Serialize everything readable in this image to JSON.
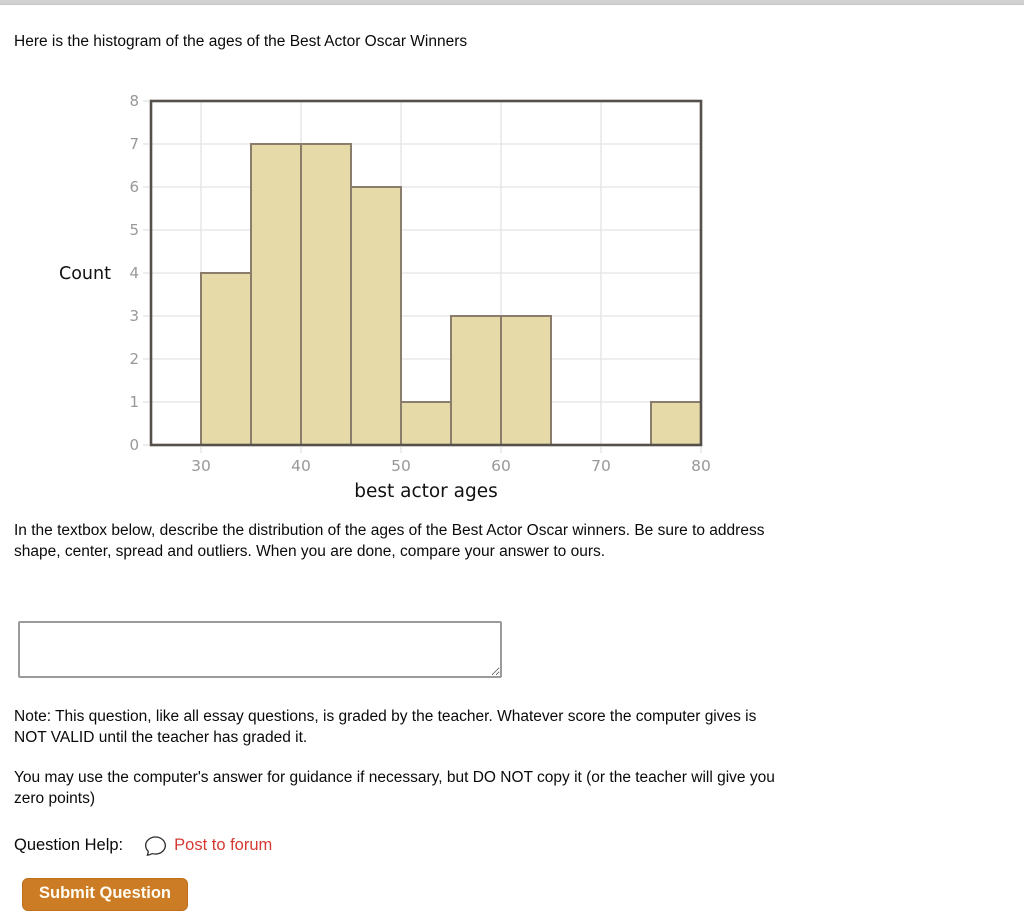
{
  "page": {
    "title": "Here is the histogram of the ages of the Best Actor Oscar Winners"
  },
  "chart_data": {
    "type": "bar",
    "title": "",
    "xlabel": "best actor ages",
    "ylabel": "Count",
    "bin_width": 5,
    "bin_starts": [
      25,
      30,
      35,
      40,
      45,
      50,
      55,
      60,
      65,
      70,
      75
    ],
    "counts": [
      0,
      4,
      7,
      7,
      6,
      1,
      3,
      3,
      0,
      0,
      1
    ],
    "xlim": [
      25,
      80
    ],
    "ylim": [
      0,
      8
    ],
    "x_ticks": [
      30,
      40,
      50,
      60,
      70,
      80
    ],
    "y_ticks": [
      0,
      1,
      2,
      3,
      4,
      5,
      6,
      7,
      8
    ],
    "grid": true,
    "legend": "none",
    "colors": {
      "bar_fill": "#e6dba8",
      "bar_border": "#8a7d6b",
      "axis": "#55504a",
      "grid": "#e3e3e3",
      "tick_label": "#989898",
      "label": "#111111"
    }
  },
  "question": {
    "prompt_lines": [
      "In the textbox below, describe the distribution of the ages of the Best Actor Oscar winners. Be sure to address",
      "shape, center, spread and outliers. When you are done, compare your answer to ours."
    ],
    "answer_value": "",
    "note_lines": [
      "Note: This question, like all essay questions, is graded by the teacher. Whatever score the computer gives is",
      "NOT VALID until the teacher has graded it."
    ],
    "guidance_lines": [
      "You may use the computer's answer for guidance if necessary, but DO NOT copy it (or the teacher will give you",
      "zero points)"
    ],
    "help_label": "Question Help:",
    "forum_link_label": "Post to forum",
    "forum_link_color": "#d63a32",
    "icons": {
      "forum": "speech-bubble-icon"
    }
  },
  "actions": {
    "submit_label": "Submit Question",
    "submit_color": "#cd7c26"
  }
}
